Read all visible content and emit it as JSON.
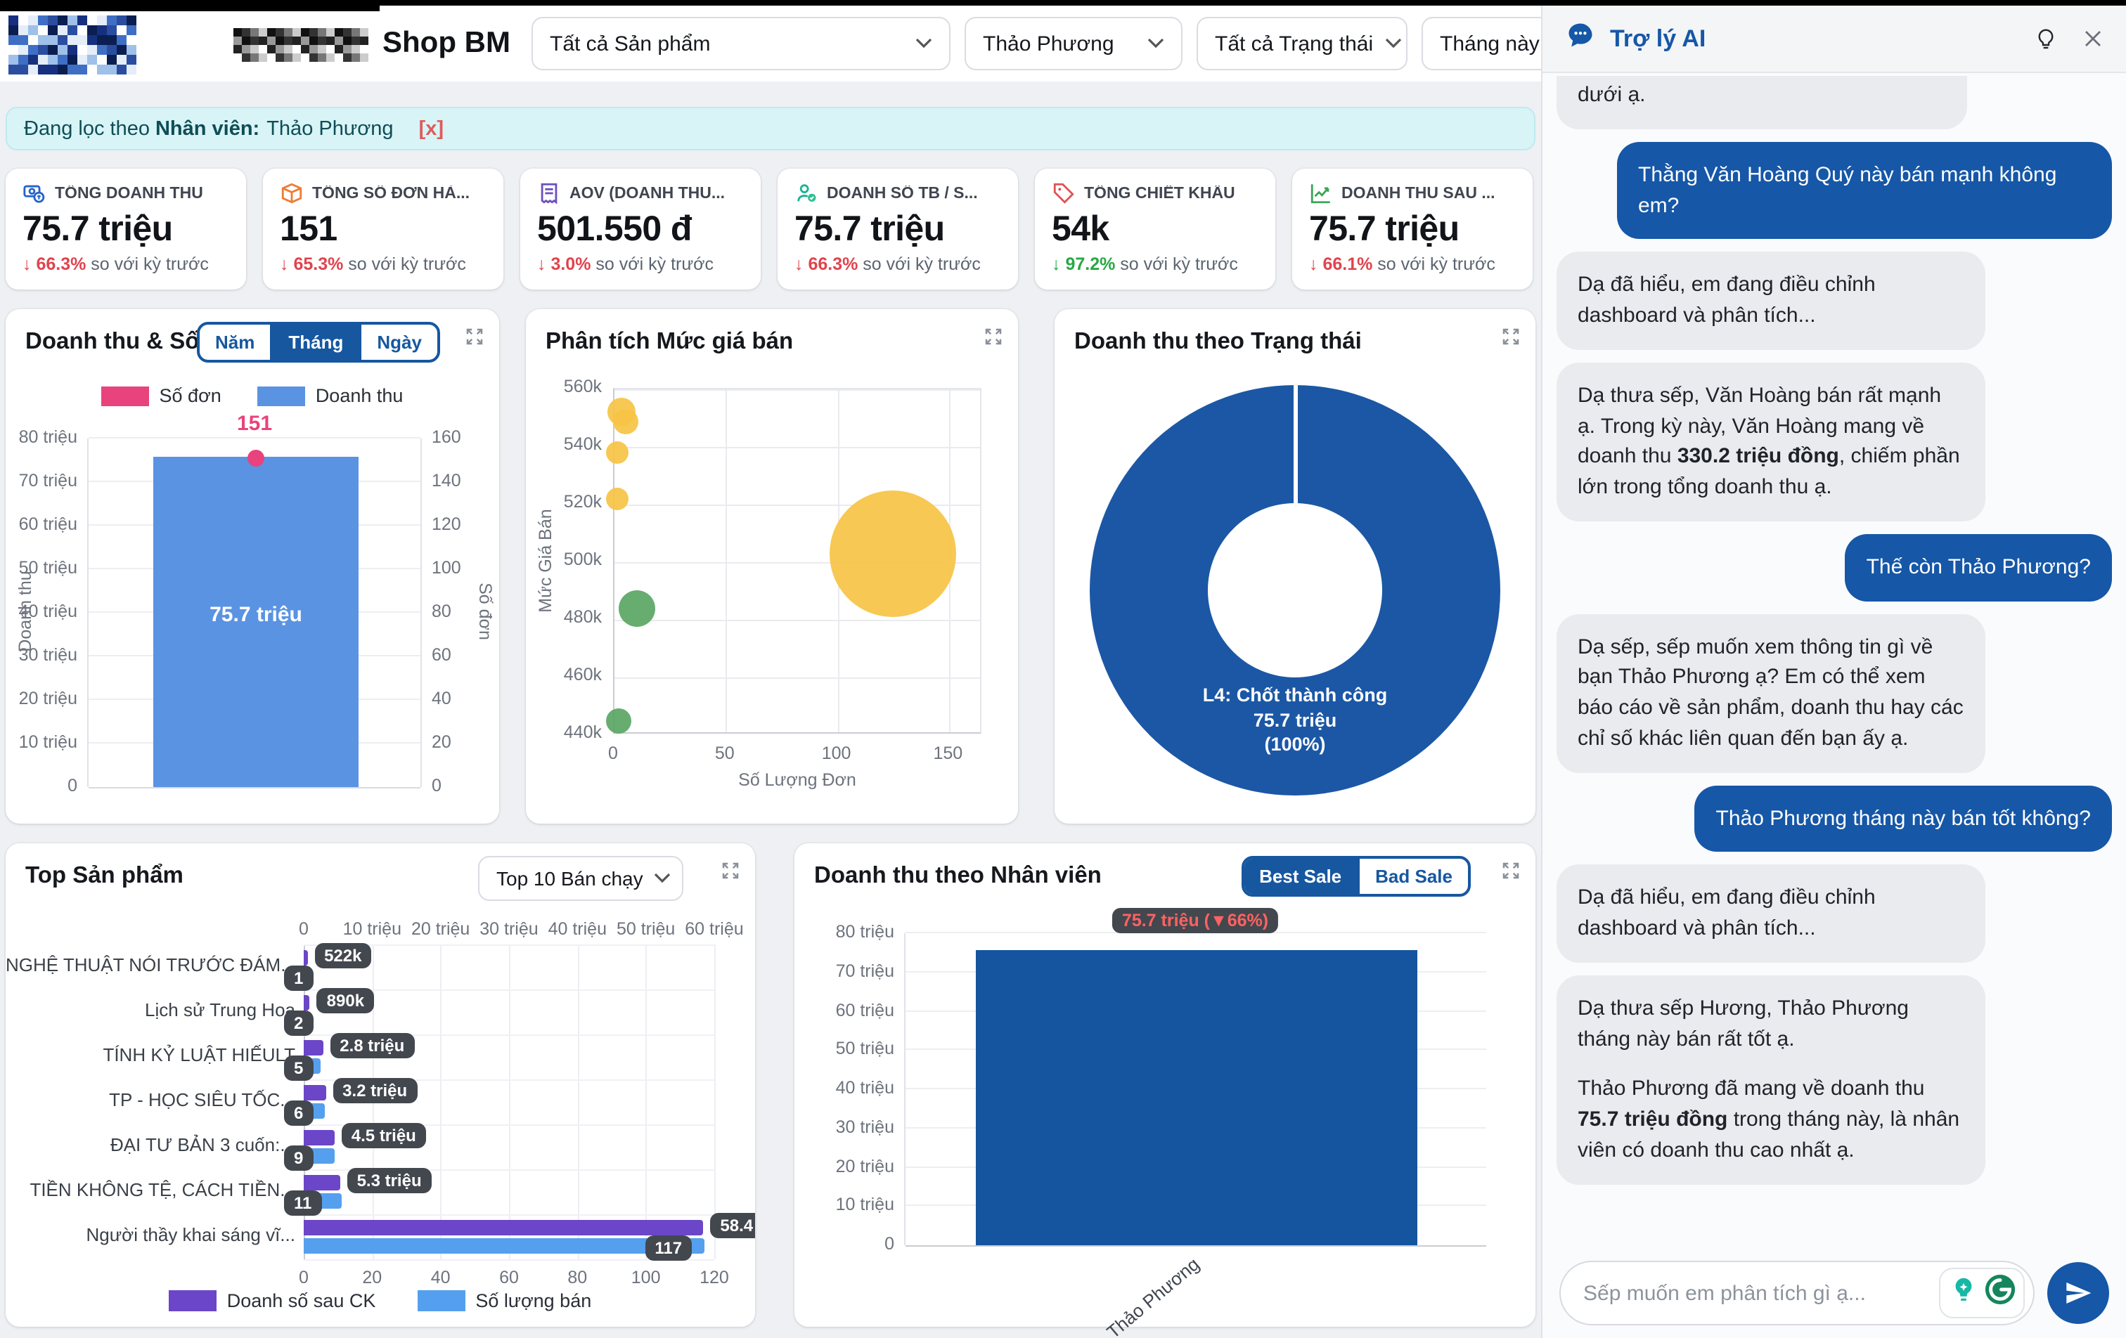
{
  "colors": {
    "accent_blue": "#1657a7",
    "bar_blue": "#5b93e3",
    "pink": "#e8437c",
    "purple": "#6b46c8",
    "light_blue": "#55a0ee",
    "donut_blue": "#1b57a5",
    "red": "#e0434d",
    "green": "#27a844",
    "filter_bg": "#d8f4f7",
    "badge_bg": "#43474e"
  },
  "header": {
    "store_name": "Shop BM",
    "filters": [
      {
        "value": "Tất cả Sản phẩm"
      },
      {
        "value": "Thảo Phương"
      },
      {
        "value": "Tất cả Trạng thái"
      },
      {
        "value": "Tháng này"
      }
    ]
  },
  "filter_notice": {
    "prefix": "Đang lọc theo",
    "field": "Nhân viên:",
    "value": "Thảo Phương",
    "clear": "[x]"
  },
  "kpis": [
    {
      "icon": "money-icon",
      "label": "TỔNG DOANH THU",
      "value": "75.7 triệu",
      "delta_arrow": "↓",
      "delta": "66.3%",
      "delta_color": "#e0434d",
      "suffix": "so với kỳ trước"
    },
    {
      "icon": "package-icon",
      "label": "TỔNG SỐ ĐƠN HÀ...",
      "value": "151",
      "delta_arrow": "↓",
      "delta": "65.3%",
      "delta_color": "#e0434d",
      "suffix": "so với kỳ trước"
    },
    {
      "icon": "receipt-icon",
      "label": "AOV (DOANH THU...",
      "value": "501.550 đ",
      "delta_arrow": "↓",
      "delta": "3.0%",
      "delta_color": "#e0434d",
      "suffix": "so với kỳ trước"
    },
    {
      "icon": "staff-icon",
      "label": "DOANH SỐ TB / S...",
      "value": "75.7 triệu",
      "delta_arrow": "↓",
      "delta": "66.3%",
      "delta_color": "#e0434d",
      "suffix": "so với kỳ trước"
    },
    {
      "icon": "discount-tag-icon",
      "label": "TỔNG CHIẾT KHẤU",
      "value": "54k",
      "delta_arrow": "↓",
      "delta": "97.2%",
      "delta_color": "#27a844",
      "suffix": "so với kỳ trước"
    },
    {
      "icon": "growth-chart-icon",
      "label": "DOANH THU SAU ...",
      "value": "75.7 triệu",
      "delta_arrow": "↓",
      "delta": "66.1%",
      "delta_color": "#e0434d",
      "suffix": "so với kỳ trước"
    }
  ],
  "chart_data": [
    {
      "type": "bar",
      "title": "Doanh thu & Số đơn",
      "tabs": [
        "Năm",
        "Tháng",
        "Ngày"
      ],
      "active_tab": "Tháng",
      "legend": [
        {
          "label": "Số đơn",
          "color": "#e8437c"
        },
        {
          "label": "Doanh thu",
          "color": "#5b93e3"
        }
      ],
      "left_axis_label": "Doanh thu",
      "right_axis_label": "Số đơn",
      "left_ticks": [
        "0",
        "10 triệu",
        "20 triệu",
        "30 triệu",
        "40 triệu",
        "50 triệu",
        "60 triệu",
        "70 triệu",
        "80 triệu"
      ],
      "right_ticks": [
        "0",
        "20",
        "40",
        "60",
        "80",
        "100",
        "120",
        "140",
        "160"
      ],
      "left_max": 80,
      "right_max": 160,
      "bars": [
        {
          "category": "Tháng",
          "doanh_thu": 75.7,
          "doanh_thu_label": "75.7 triệu",
          "so_don": 151,
          "so_don_label": "151"
        }
      ]
    },
    {
      "type": "scatter",
      "title": "Phân tích Mức giá bán",
      "xlabel": "Số Lượng Đơn",
      "ylabel": "Mức Giá Bán",
      "x_ticks": [
        0,
        50,
        100,
        150
      ],
      "x_max": 165,
      "y_ticks": [
        "440k",
        "460k",
        "480k",
        "500k",
        "520k",
        "540k",
        "560k"
      ],
      "y_min": 440,
      "y_max": 560,
      "points": [
        {
          "x": 3,
          "y": 552,
          "r": 10,
          "color": "#f6c344"
        },
        {
          "x": 5,
          "y": 549,
          "r": 9,
          "color": "#f6c344"
        },
        {
          "x": 1,
          "y": 538,
          "r": 8,
          "color": "#f6c344"
        },
        {
          "x": 1,
          "y": 522,
          "r": 8,
          "color": "#f6c344"
        },
        {
          "x": 125,
          "y": 503,
          "r": 45,
          "color": "#f6c344"
        },
        {
          "x": 10,
          "y": 484,
          "r": 13,
          "color": "#5aa664"
        },
        {
          "x": 2,
          "y": 445,
          "r": 9,
          "color": "#5aa664"
        }
      ]
    },
    {
      "type": "donut",
      "title": "Doanh thu theo Trạng thái",
      "slices": [
        {
          "label": "L4: Chốt thành công",
          "value_label": "75.7 triệu",
          "percent_label": "(100%)",
          "percent": 100,
          "color": "#1b57a5"
        }
      ]
    },
    {
      "type": "bar-horizontal",
      "title": "Top Sản phẩm",
      "selector": "Top 10 Bán chạy",
      "top_axis_ticks": [
        "0",
        "10 triệu",
        "20 triệu",
        "30 triệu",
        "40 triệu",
        "50 triệu",
        "60 triệu"
      ],
      "top_axis_max": 60,
      "bottom_axis_ticks": [
        "0",
        "20",
        "40",
        "60",
        "80",
        "100",
        "120"
      ],
      "bottom_axis_max": 120,
      "series": [
        {
          "name": "Doanh số sau CK",
          "color": "#6b46c8"
        },
        {
          "name": "Số lượng bán",
          "color": "#55a0ee"
        }
      ],
      "products": [
        {
          "name": "NGHỆ THUẬT NÓI TRƯỚC ĐÁM...",
          "revenue": 0.522,
          "revenue_label": "522k",
          "qty": 1,
          "qty_label": "1"
        },
        {
          "name": "Lịch sử Trung Hoa",
          "revenue": 0.89,
          "revenue_label": "890k",
          "qty": 2,
          "qty_label": "2"
        },
        {
          "name": "TÍNH KỶ LUẬT HIẾULT",
          "revenue": 2.8,
          "revenue_label": "2.8 triệu",
          "qty": 5,
          "qty_label": "5"
        },
        {
          "name": "TP - HỌC SIÊU TỐC...",
          "revenue": 3.2,
          "revenue_label": "3.2 triệu",
          "qty": 6,
          "qty_label": "6"
        },
        {
          "name": "ĐẠI TƯ BẢN 3 cuốn:...",
          "revenue": 4.5,
          "revenue_label": "4.5 triệu",
          "qty": 9,
          "qty_label": "9"
        },
        {
          "name": "TIỀN KHÔNG TỆ, CÁCH TIỀN...",
          "revenue": 5.3,
          "revenue_label": "5.3 triệu",
          "qty": 11,
          "qty_label": "11"
        },
        {
          "name": "Người thầy khai sáng vĩ...",
          "revenue": 58.4,
          "revenue_label": "58.4",
          "qty": 117,
          "qty_label": "117"
        }
      ]
    },
    {
      "type": "bar",
      "title": "Doanh thu theo Nhân viên",
      "tabs": [
        "Best Sale",
        "Bad Sale"
      ],
      "active_tab": "Best Sale",
      "y_ticks": [
        "0",
        "10 triệu",
        "20 triệu",
        "30 triệu",
        "40 triệu",
        "50 triệu",
        "60 triệu",
        "70 triệu",
        "80 triệu"
      ],
      "y_max": 80,
      "categories": [
        "Thảo Phương"
      ],
      "values": [
        75.7
      ],
      "bar_color": "#15549f",
      "tooltip": "75.7 triệu (▼66%)"
    }
  ],
  "assistant": {
    "title": "Trợ lý AI",
    "messages": [
      {
        "role": "assistant",
        "clipped": true,
        "text": "dưới ạ."
      },
      {
        "role": "user",
        "text": "Thằng Văn Hoàng Quý này bán mạnh không em?"
      },
      {
        "role": "assistant",
        "text": "Dạ đã hiểu, em đang điều chỉnh dashboard và phân tích..."
      },
      {
        "role": "assistant",
        "text": "Dạ thưa sếp, Văn Hoàng bán rất mạnh ạ. Trong kỳ này, Văn Hoàng mang về doanh thu **330.2 triệu đồng**, chiếm phần lớn trong tổng doanh thu ạ."
      },
      {
        "role": "user",
        "text": "Thế còn Thảo Phương?"
      },
      {
        "role": "assistant",
        "text": "Dạ sếp, sếp muốn xem thông tin gì về bạn Thảo Phương ạ? Em có thể xem báo cáo về sản phẩm, doanh thu hay các chỉ số khác liên quan đến bạn ấy ạ."
      },
      {
        "role": "user",
        "text": "Thảo Phương tháng này bán tốt không?"
      },
      {
        "role": "assistant",
        "text": "Dạ đã hiểu, em đang điều chỉnh dashboard và phân tích..."
      },
      {
        "role": "assistant",
        "text": "Dạ thưa sếp Hương, Thảo Phương tháng này bán rất tốt ạ.\n\nThảo Phương đã mang về doanh thu **75.7 triệu đồng** trong tháng này, là nhân viên có doanh thu cao nhất ạ."
      }
    ],
    "input_placeholder": "Sếp muốn em phân tích gì ạ..."
  }
}
